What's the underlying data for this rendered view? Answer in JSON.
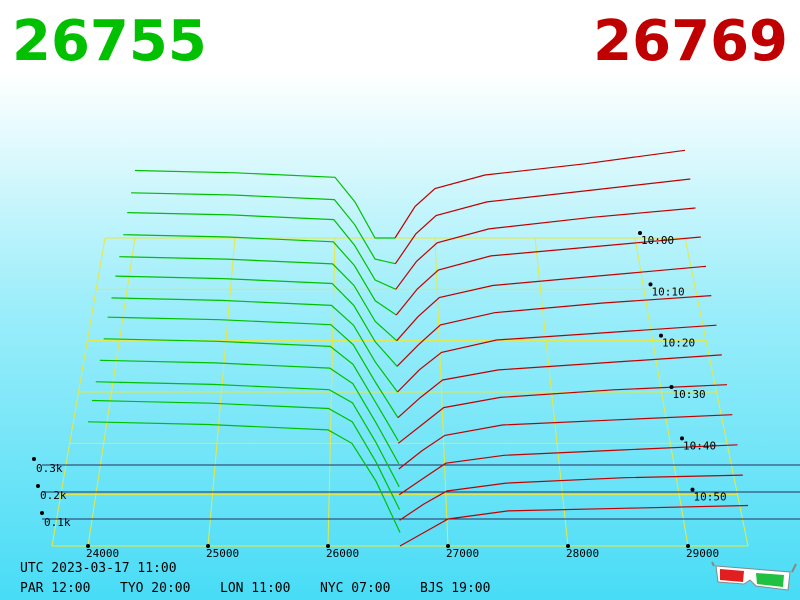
{
  "header": {
    "bid": 26755,
    "bid_color": "#00c000",
    "ask": 26769,
    "ask_color": "#c00000"
  },
  "chart_data": {
    "type": "depth3d",
    "xlim": [
      23700,
      29500
    ],
    "xticks": [
      24000,
      25000,
      26000,
      27000,
      28000,
      29000
    ],
    "yticks": [
      {
        "value": 0.1,
        "label": "0.1k"
      },
      {
        "value": 0.2,
        "label": "0.2k"
      },
      {
        "value": 0.3,
        "label": "0.3k"
      }
    ],
    "times": [
      "10:00",
      null,
      "10:10",
      null,
      "10:20",
      null,
      "10:30",
      null,
      "10:40",
      null,
      "10:50",
      null,
      null
    ],
    "bid_prices": [
      24000,
      25000,
      26000,
      26200,
      26400,
      26600
    ],
    "ask_prices": [
      26600,
      26800,
      27000,
      27500,
      28500,
      29500
    ],
    "bid_color": "#00c000",
    "ask_color": "#c00000",
    "grid_color": "#e8e840",
    "layers": [
      {
        "bids": [
          0.3,
          0.29,
          0.27,
          0.16,
          0.0,
          0.0
        ],
        "asks": [
          0.0,
          0.14,
          0.22,
          0.28,
          0.33,
          0.39
        ]
      },
      {
        "bids": [
          0.31,
          0.3,
          0.28,
          0.17,
          0.02,
          0.0
        ],
        "asks": [
          0.0,
          0.13,
          0.21,
          0.27,
          0.32,
          0.37
        ]
      },
      {
        "bids": [
          0.33,
          0.32,
          0.3,
          0.19,
          0.04,
          0.0
        ],
        "asks": [
          0.0,
          0.12,
          0.2,
          0.26,
          0.31,
          0.35
        ]
      },
      {
        "bids": [
          0.34,
          0.33,
          0.31,
          0.21,
          0.06,
          0.0
        ],
        "asks": [
          0.0,
          0.11,
          0.19,
          0.25,
          0.29,
          0.33
        ]
      },
      {
        "bids": [
          0.35,
          0.34,
          0.32,
          0.23,
          0.08,
          0.0
        ],
        "asks": [
          0.0,
          0.1,
          0.18,
          0.23,
          0.27,
          0.31
        ]
      },
      {
        "bids": [
          0.37,
          0.36,
          0.34,
          0.25,
          0.1,
          0.0
        ],
        "asks": [
          0.0,
          0.09,
          0.17,
          0.22,
          0.26,
          0.29
        ]
      },
      {
        "bids": [
          0.38,
          0.37,
          0.35,
          0.27,
          0.12,
          0.0
        ],
        "asks": [
          0.0,
          0.09,
          0.16,
          0.21,
          0.24,
          0.27
        ]
      },
      {
        "bids": [
          0.4,
          0.39,
          0.37,
          0.29,
          0.14,
          0.0
        ],
        "asks": [
          0.0,
          0.08,
          0.15,
          0.19,
          0.22,
          0.25
        ]
      },
      {
        "bids": [
          0.41,
          0.4,
          0.38,
          0.31,
          0.16,
          0.01
        ],
        "asks": [
          0.0,
          0.07,
          0.14,
          0.18,
          0.21,
          0.23
        ]
      },
      {
        "bids": [
          0.42,
          0.41,
          0.39,
          0.33,
          0.18,
          0.02
        ],
        "asks": [
          0.0,
          0.07,
          0.13,
          0.17,
          0.19,
          0.21
        ]
      },
      {
        "bids": [
          0.43,
          0.42,
          0.4,
          0.35,
          0.2,
          0.03
        ],
        "asks": [
          0.0,
          0.06,
          0.12,
          0.15,
          0.17,
          0.19
        ]
      },
      {
        "bids": [
          0.45,
          0.44,
          0.42,
          0.37,
          0.22,
          0.04
        ],
        "asks": [
          0.0,
          0.06,
          0.11,
          0.14,
          0.16,
          0.17
        ]
      },
      {
        "bids": [
          0.46,
          0.45,
          0.43,
          0.38,
          0.24,
          0.05
        ],
        "asks": [
          0.0,
          0.05,
          0.1,
          0.13,
          0.14,
          0.15
        ]
      }
    ]
  },
  "footer": {
    "utc": "UTC 2023-03-17 11:00",
    "cities": [
      "PAR 12:00",
      "TYO 20:00",
      "LON 11:00",
      "NYC 07:00",
      "BJS 19:00"
    ]
  }
}
